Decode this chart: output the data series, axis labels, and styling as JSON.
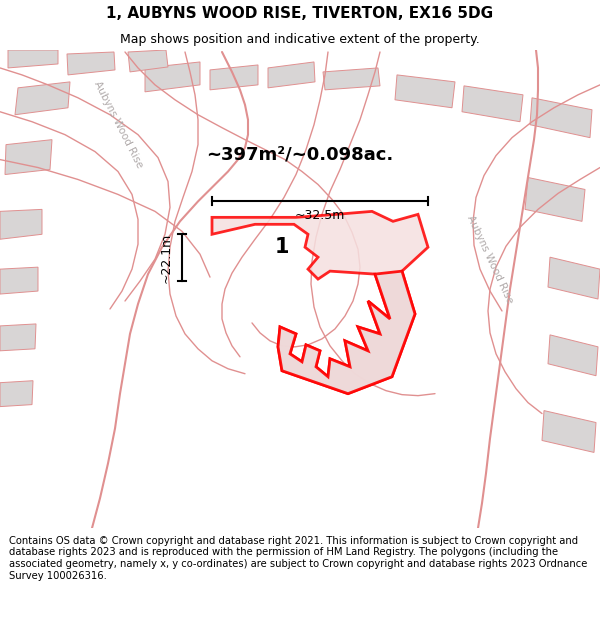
{
  "title_line1": "1, AUBYNS WOOD RISE, TIVERTON, EX16 5DG",
  "title_line2": "Map shows position and indicative extent of the property.",
  "footer_text": "Contains OS data © Crown copyright and database right 2021. This information is subject to Crown copyright and database rights 2023 and is reproduced with the permission of HM Land Registry. The polygons (including the associated geometry, namely x, y co-ordinates) are subject to Crown copyright and database rights 2023 Ordnance Survey 100026316.",
  "area_text": "~397m²/~0.098ac.",
  "label_text": "1",
  "dim_vertical": "~22.1m",
  "dim_horizontal": "~32.5m",
  "road_label_left": "Aubyns Wood Rise",
  "road_label_right": "Aubyns Wood Rise",
  "bg_color": "#edeaea",
  "pink_stroke": "#e09090",
  "red_line": "#ff0000",
  "prop_fill": "#f5e0e0",
  "gray_fill": "#d8d5d5",
  "road_label_color": "#b0aaaa",
  "title_fontsize": 11,
  "subtitle_fontsize": 9,
  "footer_fontsize": 7.2
}
